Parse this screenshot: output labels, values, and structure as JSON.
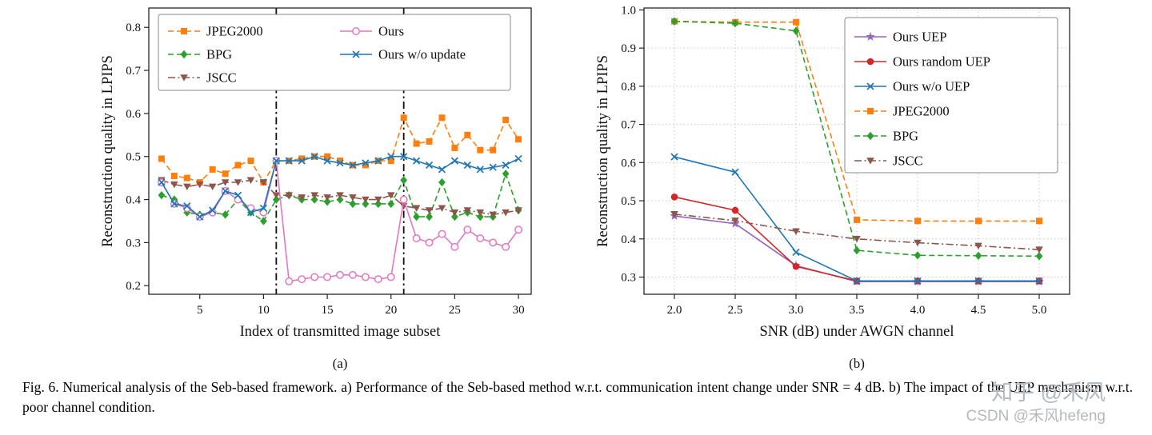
{
  "figure": {
    "caption": "Fig. 6.  Numerical analysis of the Seb-based framework. a) Performance of the Seb-based method w.r.t. communication intent change under SNR = 4 dB. b) The impact of the UEP mechanism w.r.t. poor channel condition.",
    "subplot_a_label": "(a)",
    "subplot_b_label": "(b)"
  },
  "watermark": {
    "line1": "知乎 @禾风",
    "line2": "CSDN @禾风hefeng",
    "color": "#b4b9c0"
  },
  "chart_data": [
    {
      "id": "a",
      "type": "line",
      "sublabel": "(a)",
      "xlabel": "Index of transmitted image subset",
      "ylabel": "Reconstruction quality in LPIPS",
      "xlim": [
        1,
        31
      ],
      "ylim": [
        0.18,
        0.845
      ],
      "xticks": [
        5,
        10,
        15,
        20,
        25,
        30
      ],
      "xtick_labels": [
        "5",
        "10",
        "15",
        "20",
        "25",
        "30"
      ],
      "yticks": [
        0.2,
        0.3,
        0.4,
        0.5,
        0.6,
        0.7,
        0.8
      ],
      "ytick_labels": [
        "0.2",
        "0.3",
        "0.4",
        "0.5",
        "0.6",
        "0.7",
        "0.8"
      ],
      "grid": false,
      "vlines": [
        11,
        21
      ],
      "x": [
        2,
        3,
        4,
        5,
        6,
        7,
        8,
        9,
        10,
        11,
        12,
        13,
        14,
        15,
        16,
        17,
        18,
        19,
        20,
        21,
        22,
        23,
        24,
        25,
        26,
        27,
        28,
        29,
        30
      ],
      "series": [
        {
          "name": "JPEG2000",
          "color": "#ff7f0e",
          "dash": "dashed",
          "marker": "square",
          "values": [
            0.495,
            0.455,
            0.45,
            0.44,
            0.47,
            0.46,
            0.48,
            0.49,
            0.44,
            0.49,
            0.49,
            0.495,
            0.5,
            0.5,
            0.49,
            0.48,
            0.48,
            0.49,
            0.49,
            0.59,
            0.53,
            0.535,
            0.59,
            0.52,
            0.55,
            0.515,
            0.515,
            0.585,
            0.54
          ]
        },
        {
          "name": "BPG",
          "color": "#2ca02c",
          "dash": "dashed",
          "marker": "diamond",
          "values": [
            0.41,
            0.4,
            0.37,
            0.365,
            0.37,
            0.365,
            0.4,
            0.37,
            0.35,
            0.4,
            0.41,
            0.4,
            0.4,
            0.395,
            0.4,
            0.39,
            0.39,
            0.39,
            0.39,
            0.445,
            0.36,
            0.36,
            0.44,
            0.36,
            0.37,
            0.36,
            0.36,
            0.46,
            0.375
          ]
        },
        {
          "name": "JSCC",
          "color": "#8c564b",
          "dash": "dashdot",
          "marker": "triangle-down",
          "values": [
            0.445,
            0.435,
            0.43,
            0.435,
            0.43,
            0.44,
            0.44,
            0.445,
            0.44,
            0.41,
            0.41,
            0.405,
            0.41,
            0.405,
            0.41,
            0.405,
            0.4,
            0.4,
            0.41,
            0.385,
            0.38,
            0.375,
            0.38,
            0.37,
            0.375,
            0.37,
            0.365,
            0.37,
            0.375
          ]
        },
        {
          "name": "Ours",
          "color": "#e377c2",
          "dash": "solid",
          "marker": "circle-open",
          "values": [
            0.44,
            0.39,
            0.38,
            0.36,
            0.37,
            0.42,
            0.4,
            0.38,
            0.37,
            0.49,
            0.21,
            0.215,
            0.22,
            0.22,
            0.225,
            0.225,
            0.22,
            0.215,
            0.22,
            0.4,
            0.31,
            0.3,
            0.32,
            0.29,
            0.33,
            0.31,
            0.3,
            0.29,
            0.33
          ]
        },
        {
          "name": "Ours w/o update",
          "color": "#1f77b4",
          "dash": "solid",
          "marker": "x",
          "values": [
            0.44,
            0.39,
            0.385,
            0.36,
            0.375,
            0.42,
            0.41,
            0.37,
            0.38,
            0.49,
            0.49,
            0.49,
            0.5,
            0.49,
            0.485,
            0.48,
            0.485,
            0.49,
            0.5,
            0.5,
            0.49,
            0.48,
            0.47,
            0.49,
            0.48,
            0.47,
            0.475,
            0.48,
            0.495
          ]
        }
      ]
    },
    {
      "id": "b",
      "type": "line",
      "sublabel": "(b)",
      "xlabel": "SNR (dB) under AWGN channel",
      "ylabel": "Reconstruction quality in LPIPS",
      "xlim": [
        1.75,
        5.25
      ],
      "ylim": [
        0.255,
        1.005
      ],
      "xticks": [
        2.0,
        2.5,
        3.0,
        3.5,
        4.0,
        4.5,
        5.0
      ],
      "xtick_labels": [
        "2.0",
        "2.5",
        "3.0",
        "3.5",
        "4.0",
        "4.5",
        "5.0"
      ],
      "yticks": [
        0.3,
        0.4,
        0.5,
        0.6,
        0.7,
        0.8,
        0.9,
        1.0
      ],
      "ytick_labels": [
        "0.3",
        "0.4",
        "0.5",
        "0.6",
        "0.7",
        "0.8",
        "0.9",
        "1.0"
      ],
      "grid": true,
      "vlines": [],
      "x": [
        2.0,
        2.5,
        3.0,
        3.5,
        4.0,
        4.5,
        5.0
      ],
      "series": [
        {
          "name": "Ours UEP",
          "color": "#9467bd",
          "dash": "solid",
          "marker": "star",
          "values": [
            0.46,
            0.44,
            0.33,
            0.288,
            0.288,
            0.288,
            0.288
          ]
        },
        {
          "name": "Ours random UEP",
          "color": "#d62728",
          "dash": "solid",
          "marker": "circle",
          "values": [
            0.51,
            0.475,
            0.328,
            0.29,
            0.29,
            0.29,
            0.29
          ]
        },
        {
          "name": "Ours w/o UEP",
          "color": "#1f77b4",
          "dash": "solid",
          "marker": "x",
          "values": [
            0.615,
            0.575,
            0.365,
            0.29,
            0.29,
            0.29,
            0.29
          ]
        },
        {
          "name": "JPEG2000",
          "color": "#ff7f0e",
          "dash": "dashed",
          "marker": "square",
          "values": [
            0.97,
            0.968,
            0.968,
            0.45,
            0.447,
            0.447,
            0.447
          ]
        },
        {
          "name": "BPG",
          "color": "#2ca02c",
          "dash": "dashed",
          "marker": "diamond",
          "values": [
            0.97,
            0.965,
            0.945,
            0.37,
            0.357,
            0.356,
            0.355
          ]
        },
        {
          "name": "JSCC",
          "color": "#8c564b",
          "dash": "dashdot",
          "marker": "triangle-down",
          "values": [
            0.465,
            0.448,
            0.42,
            0.4,
            0.39,
            0.382,
            0.372
          ]
        }
      ]
    }
  ]
}
